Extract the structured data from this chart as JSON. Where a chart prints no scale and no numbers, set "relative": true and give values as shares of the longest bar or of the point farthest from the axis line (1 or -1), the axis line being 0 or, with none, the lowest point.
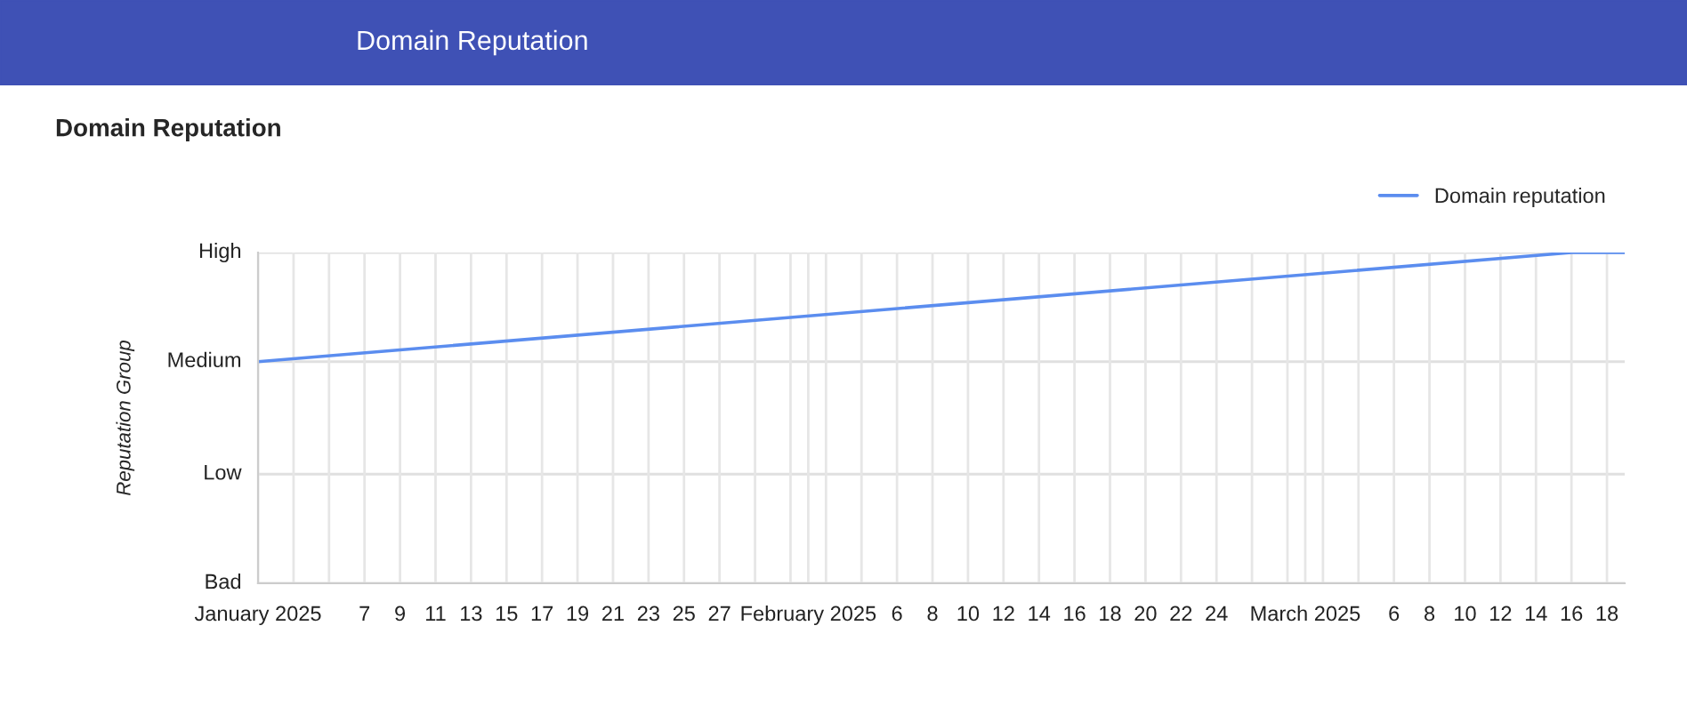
{
  "chart_data": {
    "type": "line",
    "title": "Domain Reputation",
    "ylabel": "Reputation Group",
    "annotations": [
      "Domain Reputation"
    ],
    "series": [
      {
        "name": "Domain reputation",
        "color": "#5b8def",
        "x": [
          "2025-01-01",
          "2025-03-16",
          "2025-03-19"
        ],
        "values": [
          0.67,
          1,
          1
        ]
      }
    ],
    "xlim": [
      "2025-01-01",
      "2025-03-19"
    ],
    "xticks": [
      {
        "value": "2025-01-01",
        "label": "January 2025"
      },
      {
        "value": "2025-01-03",
        "label": null
      },
      {
        "value": "2025-01-05",
        "label": null
      },
      {
        "value": "2025-01-07",
        "label": "7"
      },
      {
        "value": "2025-01-09",
        "label": "9"
      },
      {
        "value": "2025-01-11",
        "label": "11"
      },
      {
        "value": "2025-01-13",
        "label": "13"
      },
      {
        "value": "2025-01-15",
        "label": "15"
      },
      {
        "value": "2025-01-17",
        "label": "17"
      },
      {
        "value": "2025-01-19",
        "label": "19"
      },
      {
        "value": "2025-01-21",
        "label": "21"
      },
      {
        "value": "2025-01-23",
        "label": "23"
      },
      {
        "value": "2025-01-25",
        "label": "25"
      },
      {
        "value": "2025-01-27",
        "label": "27"
      },
      {
        "value": "2025-01-29",
        "label": null
      },
      {
        "value": "2025-01-31",
        "label": null
      },
      {
        "value": "2025-02-01",
        "label": "February 2025"
      },
      {
        "value": "2025-02-02",
        "label": null
      },
      {
        "value": "2025-02-04",
        "label": null
      },
      {
        "value": "2025-02-06",
        "label": "6"
      },
      {
        "value": "2025-02-08",
        "label": "8"
      },
      {
        "value": "2025-02-10",
        "label": "10"
      },
      {
        "value": "2025-02-12",
        "label": "12"
      },
      {
        "value": "2025-02-14",
        "label": "14"
      },
      {
        "value": "2025-02-16",
        "label": "16"
      },
      {
        "value": "2025-02-18",
        "label": "18"
      },
      {
        "value": "2025-02-20",
        "label": "20"
      },
      {
        "value": "2025-02-22",
        "label": "22"
      },
      {
        "value": "2025-02-24",
        "label": "24"
      },
      {
        "value": "2025-02-26",
        "label": null
      },
      {
        "value": "2025-02-28",
        "label": null
      },
      {
        "value": "2025-03-01",
        "label": "March 2025"
      },
      {
        "value": "2025-03-02",
        "label": null
      },
      {
        "value": "2025-03-04",
        "label": null
      },
      {
        "value": "2025-03-06",
        "label": "6"
      },
      {
        "value": "2025-03-08",
        "label": "8"
      },
      {
        "value": "2025-03-10",
        "label": "10"
      },
      {
        "value": "2025-03-12",
        "label": "12"
      },
      {
        "value": "2025-03-14",
        "label": "14"
      },
      {
        "value": "2025-03-16",
        "label": "16"
      },
      {
        "value": "2025-03-18",
        "label": "18"
      }
    ],
    "relative": true,
    "ref_lines": [
      {
        "axis": "y",
        "value": 0,
        "label": "Bad"
      },
      {
        "axis": "y",
        "value": 0.33,
        "label": "Low"
      },
      {
        "axis": "y",
        "value": 0.67,
        "label": "Medium"
      },
      {
        "axis": "y",
        "value": 1,
        "label": "High"
      }
    ],
    "grid": "x",
    "legend": "top right",
    "marker": "none",
    "line_style": "solid"
  }
}
